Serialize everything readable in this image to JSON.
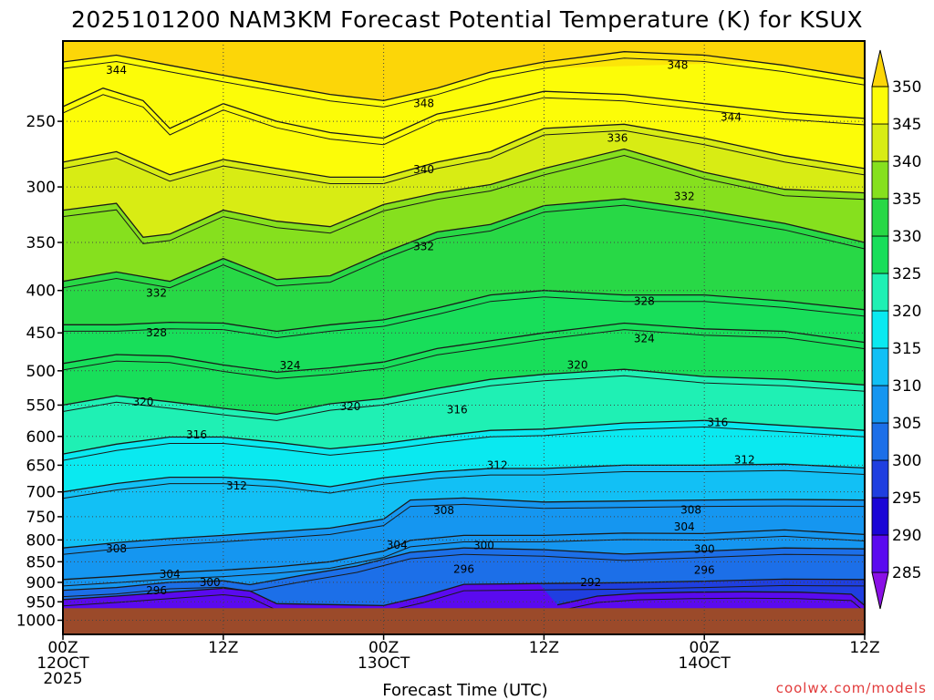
{
  "chart_data": {
    "type": "heatmap",
    "title": "2025101200 NAM3KM Forecast Potential Temperature (K) for KSUX",
    "xlabel": "Forecast Time (UTC)",
    "ylabel": "",
    "x_ticks": [
      {
        "hour": 0,
        "lines": [
          "00Z",
          "12OCT",
          "2025"
        ]
      },
      {
        "hour": 12,
        "lines": [
          "12Z"
        ]
      },
      {
        "hour": 24,
        "lines": [
          "00Z",
          "13OCT"
        ]
      },
      {
        "hour": 36,
        "lines": [
          "12Z"
        ]
      },
      {
        "hour": 48,
        "lines": [
          "00Z",
          "14OCT"
        ]
      },
      {
        "hour": 60,
        "lines": [
          "12Z"
        ]
      }
    ],
    "x_range": [
      0,
      60
    ],
    "y_ticks": [
      250,
      300,
      350,
      400,
      450,
      500,
      550,
      600,
      650,
      700,
      750,
      800,
      850,
      900,
      950,
      1000
    ],
    "y_range_hpa": [
      200,
      1040
    ],
    "surface_pressure_hpa": 967,
    "colorbar": {
      "levels": [
        285,
        290,
        295,
        300,
        305,
        310,
        315,
        320,
        325,
        330,
        335,
        340,
        345,
        350
      ],
      "colors": [
        "#8a10e6",
        "#5a0aef",
        "#1a05d6",
        "#1f3fe0",
        "#1c6fe8",
        "#1596f0",
        "#12c0f5",
        "#0ae9f0",
        "#1ff0b4",
        "#18de5a",
        "#28d846",
        "#86e01e",
        "#d8ec14",
        "#fcfc08",
        "#fcd608"
      ]
    },
    "contour_interval_k": 4,
    "contours": [
      {
        "value": 292,
        "pts": [
          [
            37,
            958
          ],
          [
            40,
            935
          ],
          [
            43,
            928
          ],
          [
            47,
            925
          ],
          [
            51,
            924
          ],
          [
            55,
            925
          ],
          [
            59,
            930
          ],
          [
            60,
            960
          ]
        ]
      },
      {
        "value": 296,
        "pts": [
          [
            0,
            944
          ],
          [
            4,
            935
          ],
          [
            8,
            925
          ],
          [
            12,
            915
          ],
          [
            14,
            922
          ],
          [
            16,
            955
          ],
          [
            24,
            960
          ],
          [
            27,
            935
          ],
          [
            30,
            905
          ],
          [
            36,
            903
          ],
          [
            42,
            901
          ],
          [
            48,
            897
          ],
          [
            54,
            892
          ],
          [
            60,
            893
          ]
        ]
      },
      {
        "value": 300,
        "pts": [
          [
            0,
            920
          ],
          [
            4,
            913
          ],
          [
            8,
            900
          ],
          [
            12,
            896
          ],
          [
            14,
            906
          ],
          [
            18,
            882
          ],
          [
            22,
            860
          ],
          [
            26,
            828
          ],
          [
            30,
            818
          ],
          [
            36,
            822
          ],
          [
            42,
            832
          ],
          [
            48,
            825
          ],
          [
            54,
            818
          ],
          [
            60,
            820
          ]
        ]
      },
      {
        "value": 304,
        "pts": [
          [
            0,
            893
          ],
          [
            4,
            885
          ],
          [
            8,
            876
          ],
          [
            12,
            870
          ],
          [
            16,
            862
          ],
          [
            20,
            850
          ],
          [
            24,
            825
          ],
          [
            26,
            801
          ],
          [
            30,
            790
          ],
          [
            36,
            790
          ],
          [
            42,
            785
          ],
          [
            48,
            786
          ],
          [
            54,
            778
          ],
          [
            60,
            788
          ]
        ]
      },
      {
        "value": 308,
        "pts": [
          [
            0,
            818
          ],
          [
            4,
            806
          ],
          [
            8,
            797
          ],
          [
            12,
            790
          ],
          [
            16,
            782
          ],
          [
            20,
            774
          ],
          [
            24,
            755
          ],
          [
            26,
            716
          ],
          [
            30,
            712
          ],
          [
            36,
            720
          ],
          [
            42,
            718
          ],
          [
            48,
            716
          ],
          [
            54,
            715
          ],
          [
            60,
            716
          ]
        ]
      },
      {
        "value": 312,
        "pts": [
          [
            0,
            700
          ],
          [
            4,
            684
          ],
          [
            8,
            672
          ],
          [
            12,
            672
          ],
          [
            16,
            678
          ],
          [
            20,
            690
          ],
          [
            24,
            673
          ],
          [
            28,
            662
          ],
          [
            32,
            656
          ],
          [
            36,
            656
          ],
          [
            42,
            650
          ],
          [
            48,
            650
          ],
          [
            54,
            648
          ],
          [
            60,
            655
          ]
        ]
      },
      {
        "value": 316,
        "pts": [
          [
            0,
            630
          ],
          [
            4,
            613
          ],
          [
            8,
            601
          ],
          [
            12,
            601
          ],
          [
            16,
            610
          ],
          [
            20,
            621
          ],
          [
            24,
            612
          ],
          [
            28,
            600
          ],
          [
            32,
            590
          ],
          [
            36,
            588
          ],
          [
            42,
            578
          ],
          [
            48,
            574
          ],
          [
            54,
            582
          ],
          [
            60,
            590
          ]
        ]
      },
      {
        "value": 320,
        "pts": [
          [
            0,
            550
          ],
          [
            4,
            536
          ],
          [
            8,
            545
          ],
          [
            12,
            555
          ],
          [
            16,
            564
          ],
          [
            20,
            548
          ],
          [
            24,
            540
          ],
          [
            28,
            525
          ],
          [
            32,
            512
          ],
          [
            36,
            505
          ],
          [
            42,
            498
          ],
          [
            48,
            508
          ],
          [
            54,
            512
          ],
          [
            60,
            520
          ]
        ]
      },
      {
        "value": 324,
        "pts": [
          [
            0,
            490
          ],
          [
            4,
            478
          ],
          [
            8,
            480
          ],
          [
            12,
            492
          ],
          [
            16,
            502
          ],
          [
            20,
            496
          ],
          [
            24,
            488
          ],
          [
            28,
            470
          ],
          [
            32,
            460
          ],
          [
            36,
            450
          ],
          [
            42,
            438
          ],
          [
            48,
            445
          ],
          [
            54,
            448
          ],
          [
            60,
            462
          ]
        ]
      },
      {
        "value": 328,
        "pts": [
          [
            0,
            440
          ],
          [
            4,
            440
          ],
          [
            8,
            437
          ],
          [
            12,
            438
          ],
          [
            16,
            448
          ],
          [
            20,
            440
          ],
          [
            24,
            434
          ],
          [
            28,
            420
          ],
          [
            32,
            405
          ],
          [
            36,
            400
          ],
          [
            42,
            405
          ],
          [
            48,
            405
          ],
          [
            54,
            412
          ],
          [
            60,
            422
          ]
        ]
      },
      {
        "value": 332,
        "pts": [
          [
            0,
            390
          ],
          [
            4,
            380
          ],
          [
            8,
            390
          ],
          [
            12,
            366
          ],
          [
            16,
            388
          ],
          [
            20,
            384
          ],
          [
            24,
            360
          ],
          [
            28,
            340
          ],
          [
            32,
            333
          ],
          [
            36,
            316
          ],
          [
            42,
            310
          ],
          [
            48,
            320
          ],
          [
            54,
            332
          ],
          [
            60,
            350
          ]
        ]
      },
      {
        "value": 336,
        "pts": [
          [
            0,
            320
          ],
          [
            4,
            314
          ],
          [
            6,
            345
          ],
          [
            8,
            342
          ],
          [
            12,
            320
          ],
          [
            16,
            330
          ],
          [
            20,
            335
          ],
          [
            24,
            315
          ],
          [
            28,
            305
          ],
          [
            32,
            298
          ],
          [
            36,
            285
          ],
          [
            42,
            270
          ],
          [
            48,
            288
          ],
          [
            54,
            302
          ],
          [
            60,
            305
          ]
        ]
      },
      {
        "value": 340,
        "pts": [
          [
            0,
            280
          ],
          [
            4,
            272
          ],
          [
            8,
            290
          ],
          [
            12,
            278
          ],
          [
            16,
            285
          ],
          [
            20,
            292
          ],
          [
            24,
            292
          ],
          [
            28,
            280
          ],
          [
            32,
            272
          ],
          [
            36,
            255
          ],
          [
            42,
            252
          ],
          [
            48,
            262
          ],
          [
            54,
            275
          ],
          [
            60,
            285
          ]
        ]
      },
      {
        "value": 344,
        "pts": [
          [
            0,
            240
          ],
          [
            3,
            228
          ],
          [
            6,
            236
          ],
          [
            8,
            255
          ],
          [
            12,
            238
          ],
          [
            16,
            250
          ],
          [
            20,
            258
          ],
          [
            24,
            262
          ],
          [
            28,
            245
          ],
          [
            32,
            238
          ],
          [
            36,
            230
          ],
          [
            42,
            232
          ],
          [
            48,
            238
          ],
          [
            54,
            244
          ],
          [
            60,
            248
          ]
        ]
      },
      {
        "value": 348,
        "pts": [
          [
            0,
            212
          ],
          [
            4,
            208
          ],
          [
            8,
            214
          ],
          [
            12,
            220
          ],
          [
            16,
            226
          ],
          [
            20,
            232
          ],
          [
            24,
            236
          ],
          [
            28,
            228
          ],
          [
            32,
            218
          ],
          [
            36,
            212
          ],
          [
            42,
            206
          ],
          [
            48,
            208
          ],
          [
            54,
            214
          ],
          [
            60,
            222
          ]
        ]
      }
    ],
    "contour_labels": [
      {
        "text": "344",
        "hour": 4.0,
        "p": 217
      },
      {
        "text": "348",
        "hour": 27.0,
        "p": 238
      },
      {
        "text": "348",
        "hour": 46.0,
        "p": 214
      },
      {
        "text": "336",
        "hour": 41.5,
        "p": 262
      },
      {
        "text": "344",
        "hour": 50.0,
        "p": 247
      },
      {
        "text": "340",
        "hour": 27.0,
        "p": 286
      },
      {
        "text": "332",
        "hour": 46.5,
        "p": 308
      },
      {
        "text": "332",
        "hour": 27.0,
        "p": 354
      },
      {
        "text": "332",
        "hour": 7.0,
        "p": 403
      },
      {
        "text": "328",
        "hour": 43.5,
        "p": 412
      },
      {
        "text": "328",
        "hour": 7.0,
        "p": 450
      },
      {
        "text": "324",
        "hour": 43.5,
        "p": 457
      },
      {
        "text": "324",
        "hour": 17.0,
        "p": 493
      },
      {
        "text": "320",
        "hour": 38.5,
        "p": 492
      },
      {
        "text": "320",
        "hour": 6.0,
        "p": 545
      },
      {
        "text": "320",
        "hour": 21.5,
        "p": 552
      },
      {
        "text": "316",
        "hour": 29.5,
        "p": 557
      },
      {
        "text": "316",
        "hour": 10.0,
        "p": 597
      },
      {
        "text": "316",
        "hour": 49.0,
        "p": 577
      },
      {
        "text": "312",
        "hour": 51.0,
        "p": 640
      },
      {
        "text": "312",
        "hour": 32.5,
        "p": 650
      },
      {
        "text": "312",
        "hour": 13.0,
        "p": 688
      },
      {
        "text": "308",
        "hour": 28.5,
        "p": 737
      },
      {
        "text": "308",
        "hour": 47.0,
        "p": 736
      },
      {
        "text": "308",
        "hour": 4.0,
        "p": 820
      },
      {
        "text": "304",
        "hour": 46.5,
        "p": 771
      },
      {
        "text": "304",
        "hour": 25.0,
        "p": 811
      },
      {
        "text": "300",
        "hour": 31.5,
        "p": 812
      },
      {
        "text": "300",
        "hour": 48.0,
        "p": 821
      },
      {
        "text": "304",
        "hour": 8.0,
        "p": 880
      },
      {
        "text": "300",
        "hour": 11.0,
        "p": 900
      },
      {
        "text": "296",
        "hour": 30.0,
        "p": 868
      },
      {
        "text": "296",
        "hour": 48.0,
        "p": 870
      },
      {
        "text": "296",
        "hour": 7.0,
        "p": 921
      },
      {
        "text": "292",
        "hour": 39.5,
        "p": 900
      }
    ]
  },
  "credit": "coolwx.com/models"
}
